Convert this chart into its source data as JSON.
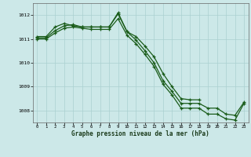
{
  "background_color": "#cce8e8",
  "grid_color": "#aad0d0",
  "line_color": "#1a5c1a",
  "marker_color": "#1a5c1a",
  "xlabel": "Graphe pression niveau de la mer (hPa)",
  "xlim": [
    -0.5,
    23.5
  ],
  "ylim": [
    1007.5,
    1012.5
  ],
  "yticks": [
    1008,
    1009,
    1010,
    1011,
    1012
  ],
  "xticks": [
    0,
    1,
    2,
    3,
    4,
    5,
    6,
    7,
    8,
    9,
    10,
    11,
    12,
    13,
    14,
    15,
    16,
    17,
    18,
    19,
    20,
    21,
    22,
    23
  ],
  "series": [
    {
      "x": [
        0,
        1,
        2,
        3,
        4,
        5,
        6,
        7,
        8,
        9,
        10,
        11,
        12,
        13,
        14,
        15,
        16,
        17,
        18
      ],
      "y": [
        1011.1,
        1011.1,
        1011.5,
        1011.65,
        1011.55,
        1011.5,
        1011.5,
        1011.5,
        1011.5,
        1012.1,
        1011.3,
        1011.1,
        1010.7,
        1010.25,
        1009.55,
        1009.0,
        1008.5,
        1008.45,
        1008.45
      ]
    },
    {
      "x": [
        0,
        1,
        2,
        3,
        4,
        5,
        6,
        7,
        8,
        9,
        10,
        11,
        12,
        13,
        14,
        15,
        16,
        17,
        18,
        19,
        20,
        21,
        22,
        23
      ],
      "y": [
        1011.05,
        1011.05,
        1011.35,
        1011.55,
        1011.6,
        1011.5,
        1011.5,
        1011.5,
        1011.5,
        1012.05,
        1011.3,
        1010.95,
        1010.5,
        1010.0,
        1009.25,
        1008.8,
        1008.3,
        1008.3,
        1008.3,
        1008.1,
        1008.1,
        1007.85,
        1007.8,
        1008.35
      ]
    },
    {
      "x": [
        0,
        1,
        2,
        3,
        4,
        5,
        6,
        7,
        8,
        9,
        10,
        11,
        12,
        13,
        14,
        15,
        16,
        17,
        18,
        19,
        20,
        21,
        22,
        23
      ],
      "y": [
        1011.0,
        1011.0,
        1011.25,
        1011.45,
        1011.5,
        1011.45,
        1011.4,
        1011.4,
        1011.4,
        1011.85,
        1011.15,
        1010.8,
        1010.35,
        1009.85,
        1009.1,
        1008.65,
        1008.1,
        1008.1,
        1008.1,
        1007.85,
        1007.85,
        1007.65,
        1007.6,
        1008.3
      ]
    }
  ]
}
